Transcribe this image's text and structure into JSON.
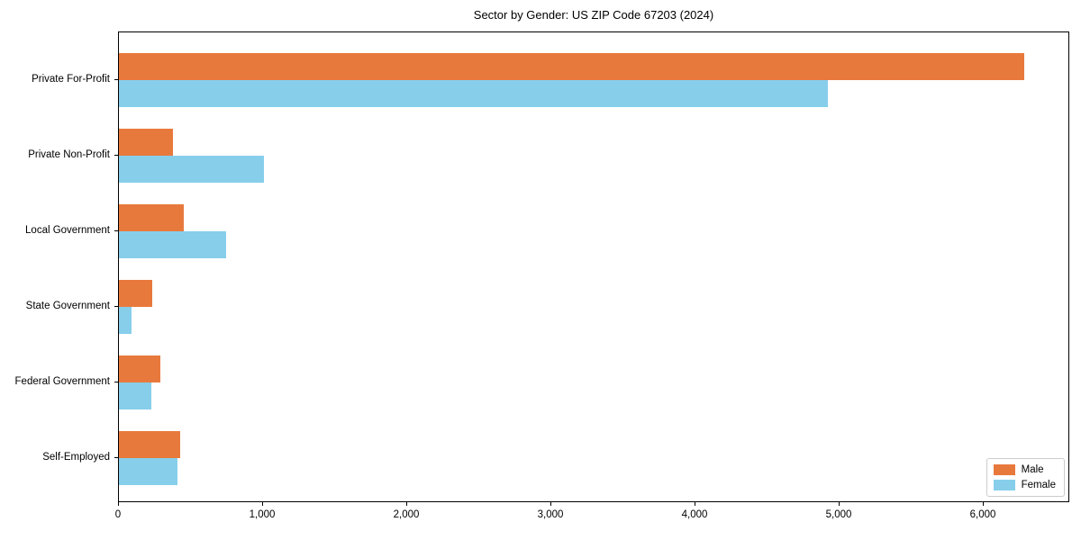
{
  "chart_data": {
    "type": "bar",
    "orientation": "horizontal",
    "title": "Sector by Gender: US ZIP Code 67203 (2024)",
    "xlabel": "",
    "ylabel": "",
    "categories": [
      "Private For-Profit",
      "Private Non-Profit",
      "Local Government",
      "State Government",
      "Federal Government",
      "Self-Employed"
    ],
    "series": [
      {
        "name": "Male",
        "color": "#e8793d",
        "values": [
          6280,
          375,
          450,
          230,
          290,
          425
        ]
      },
      {
        "name": "Female",
        "color": "#87ceeb",
        "values": [
          4920,
          1005,
          745,
          90,
          225,
          405
        ]
      }
    ],
    "xlim": [
      0,
      6600
    ],
    "x_ticks": [
      0,
      1000,
      2000,
      3000,
      4000,
      5000,
      6000
    ],
    "x_tick_labels": [
      "0",
      "1,000",
      "2,000",
      "3,000",
      "4,000",
      "5,000",
      "6,000"
    ],
    "grid": false,
    "legend_position": "lower right"
  },
  "legend": {
    "items": [
      {
        "label": "Male",
        "color": "#e8793d"
      },
      {
        "label": "Female",
        "color": "#87ceeb"
      }
    ]
  }
}
